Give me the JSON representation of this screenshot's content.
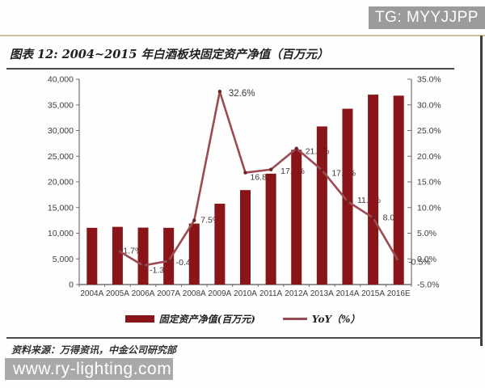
{
  "banner": {
    "text": "TG: MYYJJPP"
  },
  "figure": {
    "title": "图表 12: 2004~2015 年白酒板块固定资产净值（百万元）",
    "source": "资料来源：万得资讯，中金公司研究部"
  },
  "watermark": {
    "text": "www.ry-lighting.com"
  },
  "legend": {
    "bar_label": "固定资产净值(百万元)",
    "line_label": "YoY（%）"
  },
  "colors": {
    "bar": "#8a1518",
    "line": "#9d4b52",
    "marker": "#6d2227",
    "axis": "#707070",
    "tick_text": "#3c3c3c",
    "point_label_text": "#3a3a3a",
    "banner_bg": "#9b9b9b",
    "watermark_bg": "#a9a9a9",
    "top_rule": "#cfc19c",
    "dark_rule": "#4a4a4a",
    "right_border": "#3e3e3e"
  },
  "chart_data": {
    "type": "bar",
    "combo": "bar+line",
    "title": "2004~2015 年白酒板块固定资产净值（百万元）",
    "categories": [
      "2004A",
      "2005A",
      "2006A",
      "2007A",
      "2008A",
      "2009A",
      "2010A",
      "2011A",
      "2012A",
      "2013A",
      "2014A",
      "2015A",
      "2016E"
    ],
    "series": [
      {
        "name": "固定资产净值(百万元)",
        "type": "bar",
        "axis": "left",
        "values": [
          11050,
          11240,
          11090,
          11050,
          11880,
          15750,
          18400,
          21600,
          26250,
          30800,
          34250,
          37000,
          36800
        ]
      },
      {
        "name": "YoY（%）",
        "type": "line",
        "axis": "right",
        "values": [
          null,
          1.7,
          -1.3,
          -0.4,
          7.5,
          32.6,
          16.8,
          17.4,
          21.5,
          17.3,
          11.2,
          8.0,
          -0.5
        ]
      }
    ],
    "point_labels": [
      "",
      "1.7%",
      "-1.3%",
      "-0.4%",
      "7.5%",
      "32.6%",
      "16.8%",
      "17.4%",
      "21.5%",
      "17.3%",
      "11.2%",
      "8.0",
      "-0.5%"
    ],
    "left_axis": {
      "min": 0,
      "max": 40000,
      "step": 5000,
      "tick_labels": [
        "40,000",
        "35,000",
        "30,000",
        "25,000",
        "20,000",
        "15,000",
        "10,000",
        "5,000",
        "0"
      ]
    },
    "right_axis": {
      "min": -5,
      "max": 35,
      "step": 5,
      "tick_labels": [
        "35.0%",
        "30.0%",
        "25.0%",
        "20.0%",
        "15.0%",
        "10.0%",
        "5.0%",
        "0.0%",
        "-5.0%"
      ]
    },
    "grid": false,
    "legend_position": "bottom"
  }
}
